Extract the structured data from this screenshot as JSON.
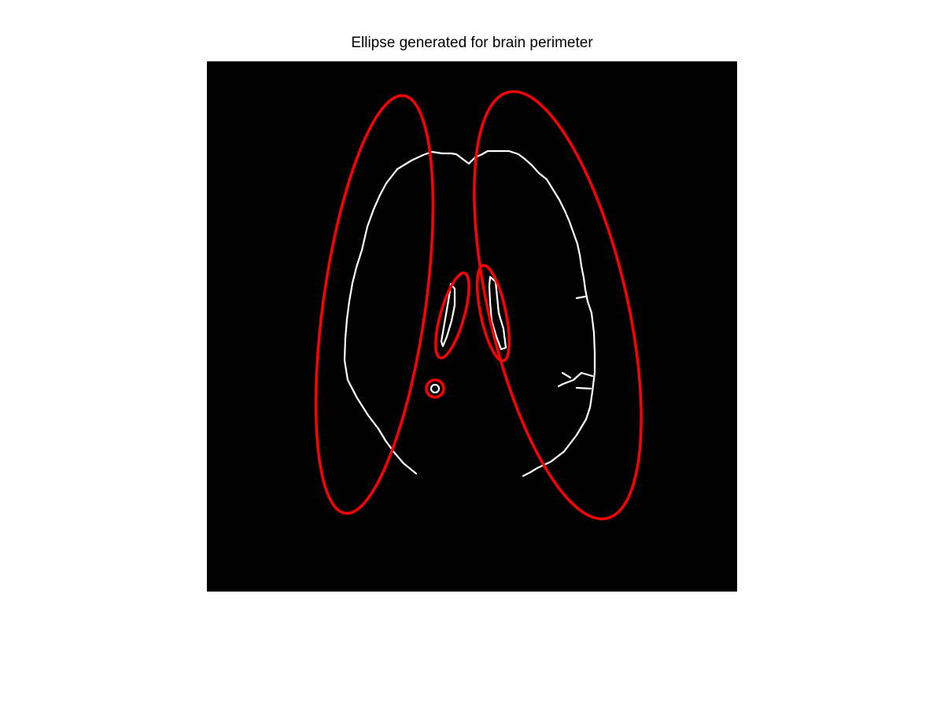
{
  "figure": {
    "title": "Ellipse generated for brain perimeter"
  },
  "colors": {
    "background": "#ffffff",
    "image_background": "#000000",
    "edge_outline": "#ffffff",
    "ellipse": "#ff0000"
  },
  "image": {
    "content": "binary edge map of a brain slice with fitted ellipses overlaid",
    "ellipse_count": 5
  }
}
